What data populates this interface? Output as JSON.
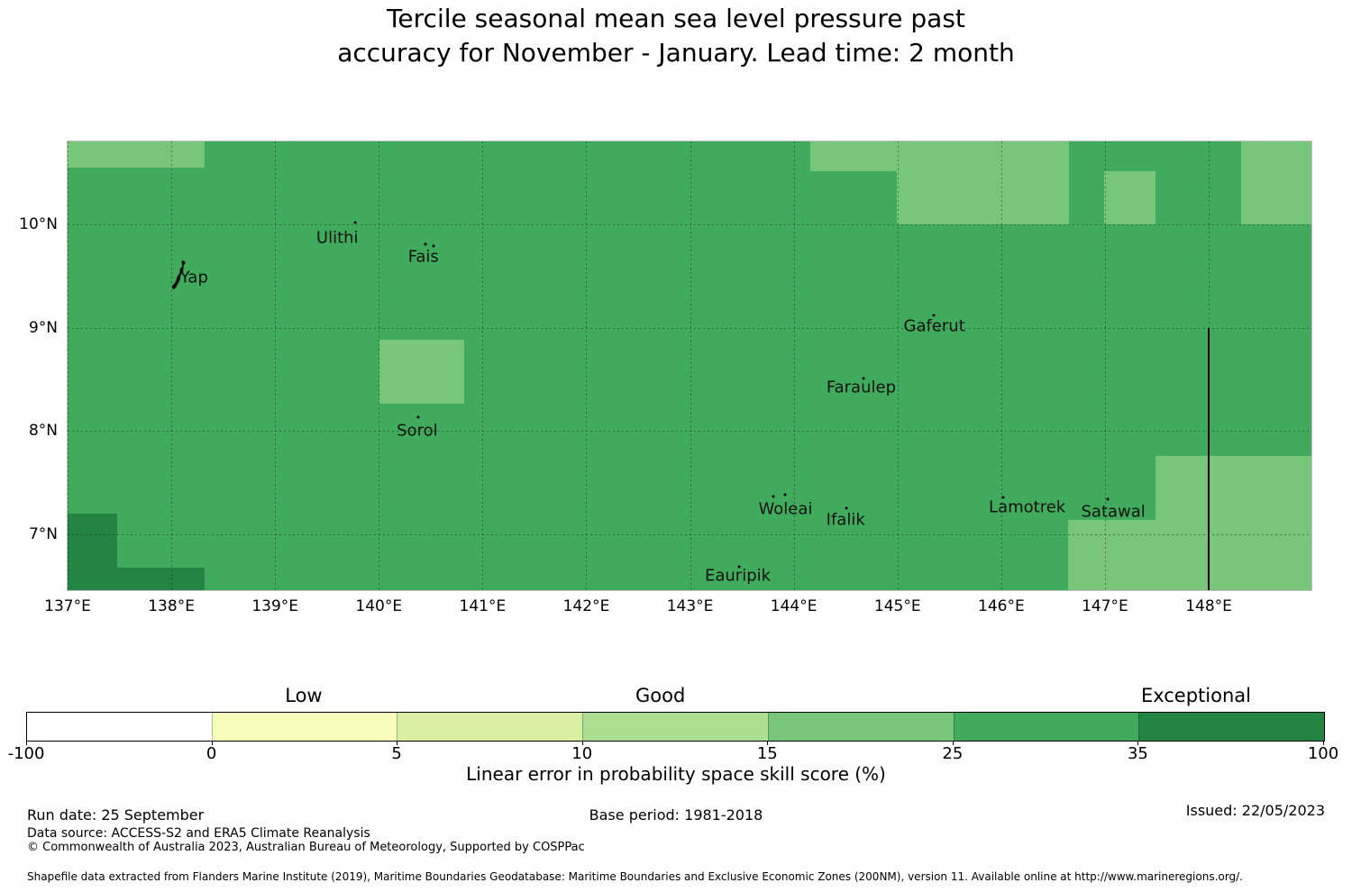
{
  "title": {
    "line1": "Tercile seasonal mean sea level pressure past",
    "line2": "accuracy for November - January. Lead time: 2 month"
  },
  "chart_data": {
    "type": "heatmap",
    "title": "Tercile seasonal mean sea level pressure past accuracy for November - January. Lead time: 2 month",
    "map_extent": {
      "lon_min": 137.0,
      "lon_max": 148.99,
      "lat_min": 6.459,
      "lat_max": 10.802
    },
    "x_ticks": [
      {
        "value": 137,
        "label": "137°E"
      },
      {
        "value": 138,
        "label": "138°E"
      },
      {
        "value": 139,
        "label": "139°E"
      },
      {
        "value": 140,
        "label": "140°E"
      },
      {
        "value": 141,
        "label": "141°E"
      },
      {
        "value": 142,
        "label": "142°E"
      },
      {
        "value": 143,
        "label": "143°E"
      },
      {
        "value": 144,
        "label": "144°E"
      },
      {
        "value": 145,
        "label": "145°E"
      },
      {
        "value": 146,
        "label": "146°E"
      },
      {
        "value": 147,
        "label": "147°E"
      },
      {
        "value": 148,
        "label": "148°E"
      }
    ],
    "y_ticks": [
      {
        "value": 10,
        "label": "10°N"
      },
      {
        "value": 9,
        "label": "9°N"
      },
      {
        "value": 8,
        "label": "8°N"
      },
      {
        "value": 7,
        "label": "7°N"
      }
    ],
    "base_cell": {
      "color": "#41ab5d",
      "band": "25-35"
    },
    "cells": [
      {
        "lon1": 137.0,
        "lon2": 138.32,
        "lat1": 10.55,
        "lat2": 10.802,
        "color": "#78c679",
        "band": "15-25"
      },
      {
        "lon1": 144.16,
        "lon2": 144.99,
        "lat1": 10.51,
        "lat2": 10.802,
        "color": "#78c679",
        "band": "15-25"
      },
      {
        "lon1": 144.99,
        "lon2": 146.65,
        "lat1": 10.0,
        "lat2": 10.802,
        "color": "#78c679",
        "band": "15-25"
      },
      {
        "lon1": 146.99,
        "lon2": 147.49,
        "lat1": 10.0,
        "lat2": 10.51,
        "color": "#78c679",
        "band": "15-25"
      },
      {
        "lon1": 148.31,
        "lon2": 148.99,
        "lat1": 10.0,
        "lat2": 10.802,
        "color": "#78c679",
        "band": "15-25"
      },
      {
        "lon1": 140.01,
        "lon2": 140.82,
        "lat1": 8.26,
        "lat2": 8.88,
        "color": "#78c679",
        "band": "15-25"
      },
      {
        "lon1": 147.49,
        "lon2": 148.99,
        "lat1": 6.459,
        "lat2": 7.76,
        "color": "#78c679",
        "band": "15-25"
      },
      {
        "lon1": 146.64,
        "lon2": 147.49,
        "lat1": 6.459,
        "lat2": 7.14,
        "color": "#78c679",
        "band": "15-25"
      },
      {
        "lon1": 137.0,
        "lon2": 137.48,
        "lat1": 6.459,
        "lat2": 7.2,
        "color": "#238443",
        "band": "35-100"
      },
      {
        "lon1": 137.48,
        "lon2": 138.32,
        "lat1": 6.459,
        "lat2": 6.68,
        "color": "#238443",
        "band": "35-100"
      }
    ],
    "boundary_line": {
      "lon": 148.0,
      "lat_top": 9.0,
      "lat_bottom": 6.459,
      "color": "#000000"
    },
    "islands": [
      {
        "name": "Yap",
        "label_lon": 138.22,
        "label_lat": 9.485,
        "shape": "outline",
        "dots": []
      },
      {
        "name": "Ulithi",
        "label_lon": 139.6,
        "label_lat": 9.868,
        "dots": [
          [
            139.77,
            10.02
          ]
        ]
      },
      {
        "name": "Fais",
        "label_lon": 140.43,
        "label_lat": 9.685,
        "dots": [
          [
            140.45,
            9.805
          ],
          [
            140.53,
            9.79
          ]
        ]
      },
      {
        "name": "Sorol",
        "label_lon": 140.37,
        "label_lat": 8.005,
        "dots": [
          [
            140.38,
            8.13
          ]
        ]
      },
      {
        "name": "Gaferut",
        "label_lon": 145.355,
        "label_lat": 9.01,
        "dots": [
          [
            145.35,
            9.115
          ]
        ]
      },
      {
        "name": "Faraulep",
        "label_lon": 144.65,
        "label_lat": 8.42,
        "dots": [
          [
            144.67,
            8.51
          ]
        ]
      },
      {
        "name": "Woleai",
        "label_lon": 143.92,
        "label_lat": 7.245,
        "dots": [
          [
            143.8,
            7.365
          ],
          [
            143.915,
            7.38
          ]
        ]
      },
      {
        "name": "Ifalik",
        "label_lon": 144.5,
        "label_lat": 7.135,
        "dots": [
          [
            144.51,
            7.25
          ]
        ]
      },
      {
        "name": "Eauripik",
        "label_lon": 143.46,
        "label_lat": 6.6,
        "dots": [
          [
            143.47,
            6.69
          ]
        ]
      },
      {
        "name": "Lamotrek",
        "label_lon": 146.25,
        "label_lat": 7.26,
        "dots": [
          [
            146.02,
            7.36
          ]
        ]
      },
      {
        "name": "Satawal",
        "label_lon": 147.08,
        "label_lat": 7.215,
        "dots": [
          [
            147.03,
            7.34
          ]
        ]
      }
    ],
    "colorbar": {
      "axis_label": "Linear error in probability space skill score (%)",
      "segments": [
        "#ffffff",
        "#f7fcb9",
        "#d9f0a3",
        "#addd8e",
        "#78c679",
        "#41ab5d",
        "#238443"
      ],
      "boundary_labels": [
        "-100",
        "0",
        "5",
        "10",
        "15",
        "25",
        "35",
        "100"
      ],
      "categories": [
        {
          "label": "Low",
          "pos": 0.214
        },
        {
          "label": "Good",
          "pos": 0.489
        },
        {
          "label": "Exceptional",
          "pos": 0.902
        }
      ]
    }
  },
  "footer": {
    "run_date": "Run date: 25 September",
    "base_period": "Base period: 1981-2018",
    "issued": "Issued: 22/05/2023",
    "data_source": "Data source: ACCESS-S2 and ERA5 Climate Reanalysis",
    "copyright": "© Commonwealth of Australia 2023, Australian Bureau of Meteorology, Supported by COSPPac",
    "shapefile_note": "Shapefile data extracted from Flanders Marine Institute (2019), Maritime Boundaries Geodatabase: Maritime Boundaries and Exclusive Economic Zones (200NM), version 11. Available online at http://www.marineregions.org/."
  }
}
